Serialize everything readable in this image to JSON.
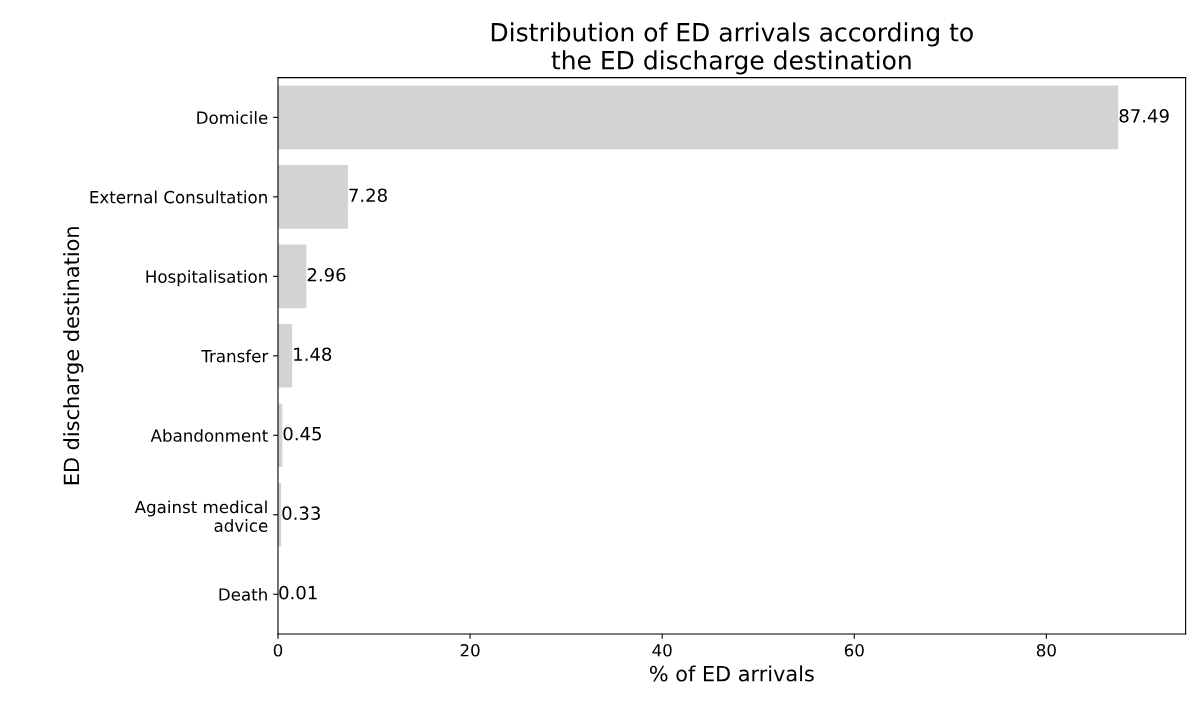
{
  "chart_data": {
    "type": "bar",
    "orientation": "horizontal",
    "title": "Distribution of ED arrivals according to\nthe ED discharge destination",
    "xlabel": "% of ED arrivals",
    "ylabel": "ED discharge destination",
    "categories": [
      "Domicile",
      "External Consultation",
      "Hospitalisation",
      "Transfer",
      "Abandonment",
      "Against medical\nadvice",
      "Death"
    ],
    "values": [
      87.49,
      7.28,
      2.96,
      1.48,
      0.45,
      0.33,
      0.01
    ],
    "color": "#d3d3d3",
    "xlim": [
      0,
      94.5
    ],
    "xticks": [
      0,
      20,
      40,
      60,
      80
    ],
    "data_labels": true,
    "grid": false,
    "legend": false
  }
}
